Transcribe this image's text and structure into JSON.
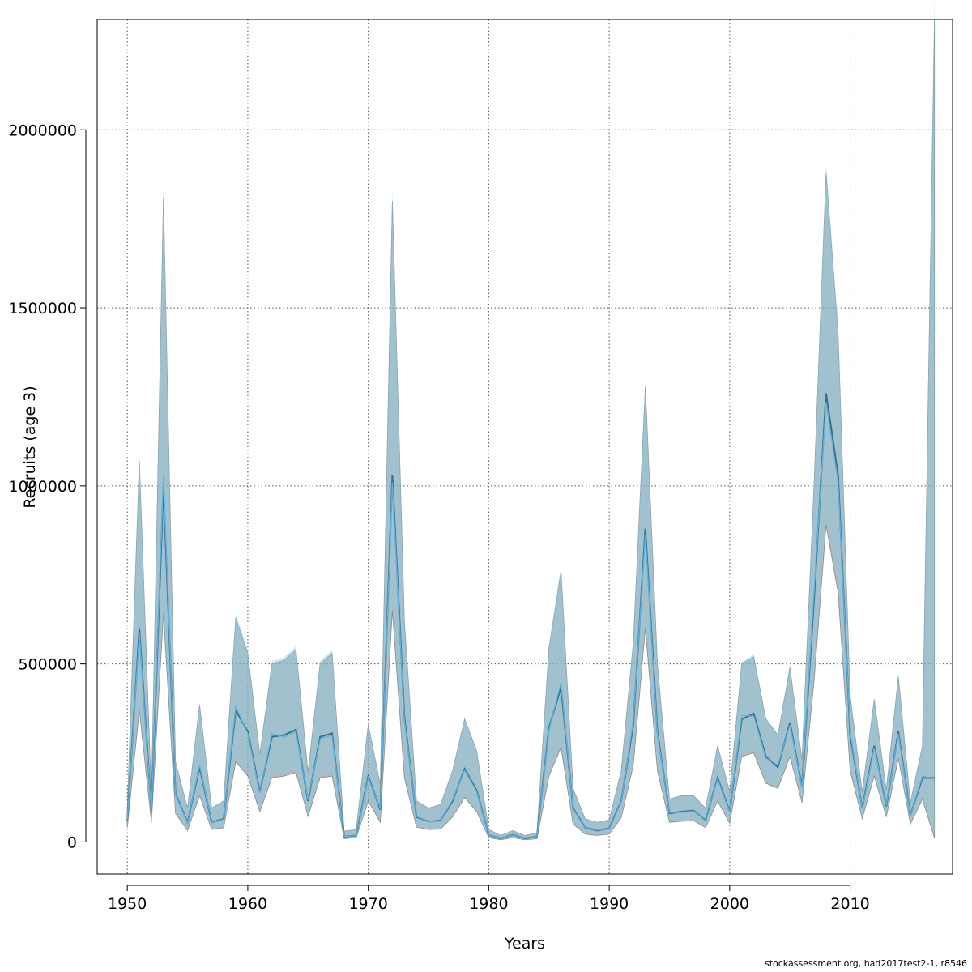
{
  "chart_data": {
    "type": "line",
    "title": "",
    "xlabel": "Years",
    "ylabel": "Recruits (age 3)",
    "xlim": [
      1947.5,
      2018.5
    ],
    "ylim": [
      -90000,
      2310000
    ],
    "x_ticks": [
      1950,
      1960,
      1970,
      1980,
      1990,
      2000,
      2010
    ],
    "y_ticks": [
      0,
      500000,
      1000000,
      1500000,
      2000000
    ],
    "x_tick_labels": [
      "1950",
      "1960",
      "1970",
      "1980",
      "1990",
      "2000",
      "2010"
    ],
    "y_tick_labels": [
      "0",
      "500000",
      "1000000",
      "1500000",
      "2000000"
    ],
    "grid": true,
    "colors": {
      "band_dark": "#7c7c7c",
      "band_light": "#87ceeb",
      "line_dark": "#3a6f8c",
      "line_light": "#5bb5e0"
    },
    "x": [
      1950,
      1951,
      1952,
      1953,
      1954,
      1955,
      1956,
      1957,
      1958,
      1959,
      1960,
      1961,
      1962,
      1963,
      1964,
      1965,
      1966,
      1967,
      1968,
      1969,
      1970,
      1971,
      1972,
      1973,
      1974,
      1975,
      1976,
      1977,
      1978,
      1979,
      1980,
      1981,
      1982,
      1983,
      1984,
      1985,
      1986,
      1987,
      1988,
      1989,
      1990,
      1991,
      1992,
      1993,
      1994,
      1995,
      1996,
      1997,
      1998,
      1999,
      2000,
      2001,
      2002,
      2003,
      2004,
      2005,
      2006,
      2007,
      2008,
      2009,
      2010,
      2011,
      2012,
      2013,
      2014,
      2015,
      2016,
      2017
    ],
    "series": [
      {
        "values": [
          60000,
          600000,
          85000,
          1000000,
          135000,
          55000,
          210000,
          55000,
          65000,
          370000,
          310000,
          140000,
          295000,
          300000,
          315000,
          115000,
          295000,
          305000,
          15000,
          18000,
          185000,
          90000,
          1030000,
          350000,
          70000,
          57000,
          60000,
          115000,
          205000,
          145000,
          20000,
          10000,
          20000,
          10000,
          15000,
          320000,
          435000,
          95000,
          40000,
          32000,
          38000,
          115000,
          330000,
          880000,
          310000,
          80000,
          85000,
          88000,
          62000,
          180000,
          85000,
          345000,
          360000,
          240000,
          210000,
          335000,
          155000,
          680000,
          1260000,
          1030000,
          300000,
          95000,
          270000,
          100000,
          310000,
          75000,
          180000,
          180000
        ],
        "lower": [
          40000,
          370000,
          55000,
          640000,
          80000,
          32000,
          130000,
          35000,
          40000,
          225000,
          185000,
          85000,
          180000,
          185000,
          195000,
          72000,
          180000,
          185000,
          9000,
          12000,
          115000,
          55000,
          650000,
          180000,
          42000,
          35000,
          36000,
          70000,
          125000,
          85000,
          12000,
          6000,
          12000,
          6000,
          9000,
          185000,
          265000,
          50000,
          22000,
          18000,
          22000,
          68000,
          215000,
          600000,
          200000,
          55000,
          58000,
          60000,
          40000,
          115000,
          52000,
          240000,
          250000,
          165000,
          150000,
          240000,
          110000,
          450000,
          890000,
          700000,
          200000,
          65000,
          185000,
          70000,
          235000,
          50000,
          120000,
          10000
        ],
        "upper": [
          90000,
          1070000,
          130000,
          1810000,
          225000,
          95000,
          385000,
          95000,
          115000,
          630000,
          530000,
          245000,
          500000,
          510000,
          540000,
          195000,
          500000,
          530000,
          30000,
          35000,
          330000,
          160000,
          1800000,
          620000,
          115000,
          95000,
          105000,
          200000,
          345000,
          255000,
          35000,
          18000,
          32000,
          18000,
          25000,
          545000,
          760000,
          150000,
          65000,
          55000,
          62000,
          200000,
          560000,
          1280000,
          500000,
          120000,
          130000,
          130000,
          95000,
          270000,
          140000,
          500000,
          520000,
          345000,
          300000,
          490000,
          230000,
          1000000,
          1880000,
          1430000,
          410000,
          140000,
          400000,
          145000,
          465000,
          110000,
          270000,
          2310000
        ]
      }
    ]
  },
  "footer": {
    "credit": "stockassessment.org, had2017test2-1, r8546"
  }
}
